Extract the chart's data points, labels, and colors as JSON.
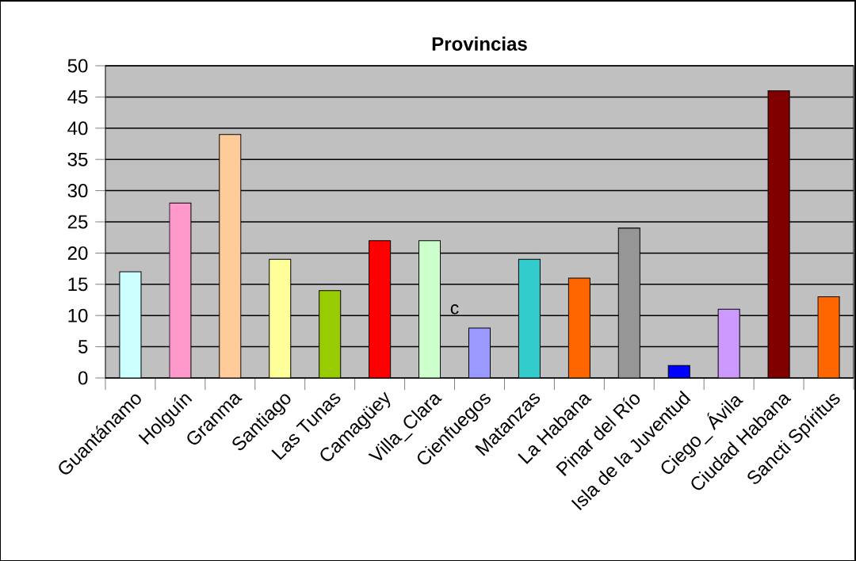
{
  "chart_data": {
    "type": "bar",
    "title": "Provincias",
    "categories": [
      "Guantánamo",
      "Holguín",
      "Granma",
      "Santiago",
      "Las Tunas",
      "Camagüey",
      "Villa_Clara",
      "Cienfuegos",
      "Matanzas",
      "La Habana",
      "Pinar del Río",
      "Isla de la Juventud",
      "Ciego_ Ávila",
      "Ciudad Habana",
      "Sancti Spíritus"
    ],
    "values": [
      17,
      28,
      39,
      19,
      14,
      22,
      22,
      8,
      19,
      16,
      24,
      2,
      11,
      46,
      13
    ],
    "colors": [
      "#ccffff",
      "#ff99cc",
      "#ffcc99",
      "#ffff99",
      "#99cc00",
      "#ff0000",
      "#ccffcc",
      "#9999ff",
      "#33cccc",
      "#ff6600",
      "#969696",
      "#0000ff",
      "#cc99ff",
      "#800000",
      "#ff6600"
    ],
    "ylim": [
      0,
      50
    ],
    "yticks": [
      0,
      5,
      10,
      15,
      20,
      25,
      30,
      35,
      40,
      45,
      50
    ],
    "grid": "y",
    "annotations": [
      "c"
    ]
  }
}
